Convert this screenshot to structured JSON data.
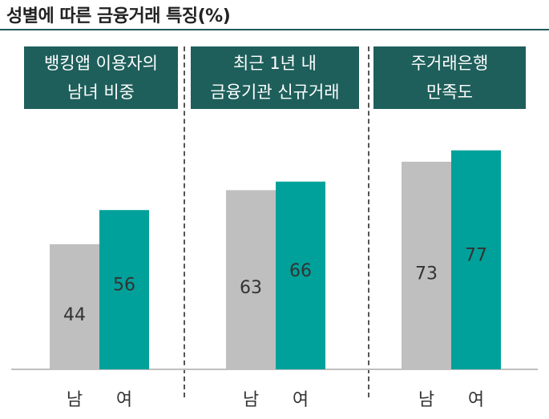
{
  "title": "성별에 따른 금융거래 특징(%)",
  "colors": {
    "male": "#bfbfbf",
    "female": "#00a19a",
    "header_bg": "#1e5f5b"
  },
  "chart_data": {
    "type": "bar",
    "title": "성별에 따른 금융거래 특징(%)",
    "groups": [
      {
        "label": "뱅킹앱 이용자의\n남녀 비중",
        "categories": [
          "남",
          "여"
        ],
        "values": [
          44,
          56
        ]
      },
      {
        "label": "최근 1년 내\n금융기관 신규거래",
        "categories": [
          "남",
          "여"
        ],
        "values": [
          63,
          66
        ]
      },
      {
        "label": "주거래은행\n만족도",
        "categories": [
          "남",
          "여"
        ],
        "values": [
          73,
          77
        ]
      }
    ],
    "ylim": [
      0,
      100
    ],
    "grid": false
  }
}
